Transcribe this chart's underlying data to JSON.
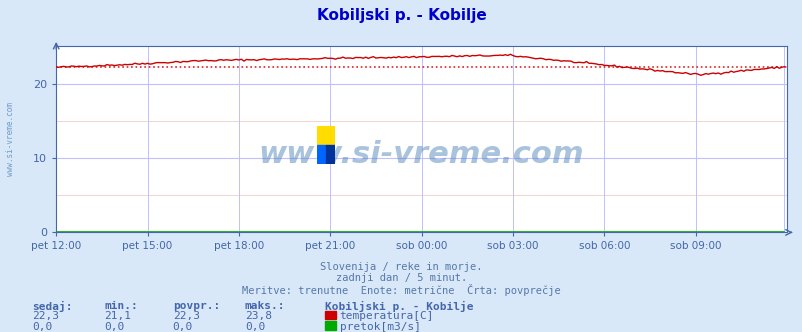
{
  "title": "Kobiljski p. - Kobilje",
  "title_color": "#0000cc",
  "bg_color": "#d8e8f8",
  "plot_bg_color": "#ffffff",
  "grid_color_major": "#c0c0ff",
  "grid_color_minor": "#f0c0c0",
  "xlabels": [
    "pet 12:00",
    "pet 15:00",
    "pet 18:00",
    "pet 21:00",
    "sob 00:00",
    "sob 03:00",
    "sob 06:00",
    "sob 09:00"
  ],
  "xlabel_color": "#4466aa",
  "ylabel_color": "#4466aa",
  "yticks": [
    0,
    10,
    20
  ],
  "ylim": [
    0,
    25
  ],
  "xlim": [
    0,
    288
  ],
  "avg_line_value": 22.3,
  "avg_line_color": "#dd2222",
  "avg_line_style": "dotted",
  "temp_line_color": "#cc0000",
  "flow_line_color": "#00aa00",
  "watermark_text": "www.si-vreme.com",
  "watermark_color": "#5588bb",
  "watermark_alpha": 0.35,
  "footer_line1": "Slovenija / reke in morje.",
  "footer_line2": "zadnji dan / 5 minut.",
  "footer_line3": "Meritve: trenutne  Enote: metrične  Črta: povprečje",
  "footer_color": "#5577aa",
  "table_headers": [
    "sedaj:",
    "min.:",
    "povpr.:",
    "maks.:"
  ],
  "table_temp": [
    "22,3",
    "21,1",
    "22,3",
    "23,8"
  ],
  "table_flow": [
    "0,0",
    "0,0",
    "0,0",
    "0,0"
  ],
  "table_color": "#4466aa",
  "legend_title": "Kobiljski p. - Kobilje",
  "legend_temp_label": "temperatura[C]",
  "legend_flow_label": "pretok[m3/s]",
  "axis_color": "#4466aa",
  "tick_color": "#4466aa",
  "logo_colors": [
    "#ffdd00",
    "#0066ff",
    "#003399"
  ]
}
